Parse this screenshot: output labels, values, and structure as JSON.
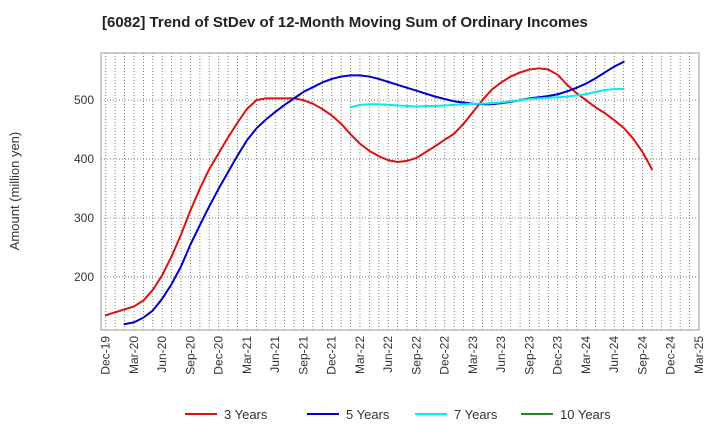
{
  "chart_data": {
    "type": "line",
    "title": "[6082]  Trend of StDev of 12-Month Moving Sum of Ordinary Incomes",
    "xlabel": "",
    "ylabel": "Amount (million yen)",
    "ylim": [
      110,
      580
    ],
    "yticks": [
      200,
      300,
      400,
      500
    ],
    "x_tick_labels": [
      "Dec-19",
      "Mar-20",
      "Jun-20",
      "Sep-20",
      "Dec-20",
      "Mar-21",
      "Jun-21",
      "Sep-21",
      "Dec-21",
      "Mar-22",
      "Jun-22",
      "Sep-22",
      "Dec-22",
      "Mar-23",
      "Jun-23",
      "Sep-23",
      "Dec-23",
      "Mar-24",
      "Jun-24",
      "Sep-24",
      "Dec-24",
      "Mar-25"
    ],
    "grid": true,
    "legend_position": "bottom",
    "series": [
      {
        "name": "3 Years",
        "color": "#dd1111",
        "start_index": 0,
        "values": [
          135,
          140,
          145,
          150,
          160,
          178,
          203,
          235,
          272,
          313,
          350,
          383,
          410,
          437,
          462,
          485,
          500,
          503,
          503,
          503,
          503,
          500,
          494,
          485,
          474,
          460,
          442,
          426,
          414,
          405,
          398,
          395,
          397,
          402,
          412,
          422,
          433,
          443,
          460,
          480,
          500,
          518,
          530,
          540,
          547,
          552,
          554,
          552,
          543,
          526,
          512,
          500,
          488,
          478,
          466,
          453,
          435,
          412,
          383
        ]
      },
      {
        "name": "5 Years",
        "color": "#0000cc",
        "start_index": 2,
        "values": [
          120,
          123,
          131,
          143,
          163,
          188,
          218,
          255,
          288,
          320,
          350,
          378,
          406,
          432,
          452,
          467,
          480,
          492,
          503,
          514,
          522,
          530,
          536,
          540,
          542,
          542,
          540,
          536,
          531,
          526,
          521,
          516,
          511,
          506,
          502,
          498,
          496,
          494,
          493,
          493,
          495,
          497,
          500,
          503,
          505,
          507,
          510,
          515,
          521,
          528,
          537,
          547,
          557,
          565
        ]
      },
      {
        "name": "7 Years",
        "color": "#00eeee",
        "start_index": 26,
        "values": [
          488,
          492,
          493,
          493,
          492,
          491,
          490,
          489,
          490,
          490,
          491,
          492,
          493,
          494,
          494,
          495,
          496,
          498,
          500,
          502,
          503,
          504,
          505,
          506,
          508,
          510,
          514,
          517,
          519,
          519
        ]
      },
      {
        "name": "10 Years",
        "color": "#228822",
        "start_index": 0,
        "values": []
      }
    ]
  }
}
